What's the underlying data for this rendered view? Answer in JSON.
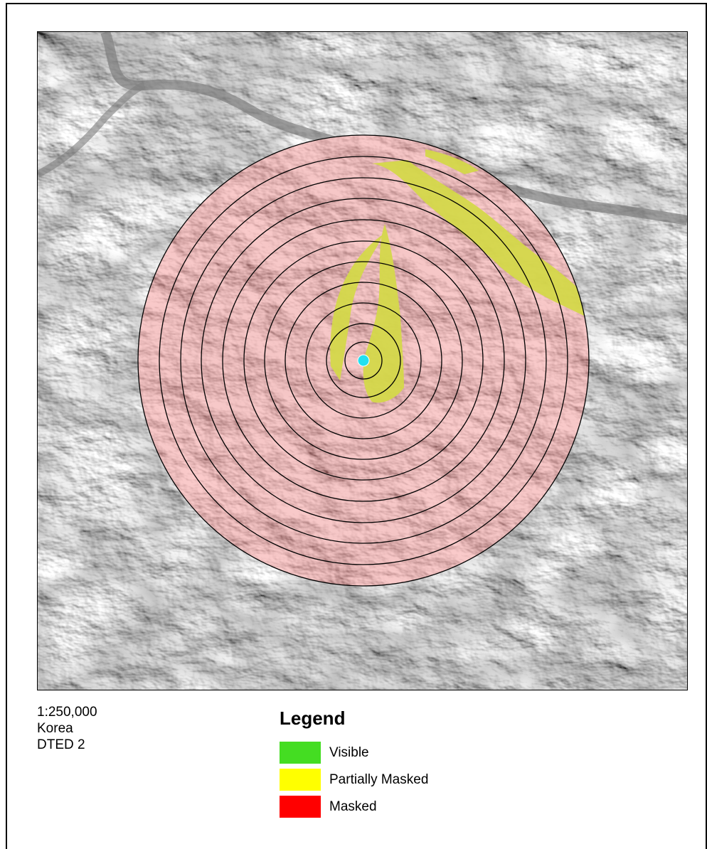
{
  "map": {
    "basemap": "grayscale shaded relief terrain",
    "overlay": "viewshed analysis",
    "range_ring_count": 11,
    "observer_icon": "observer-point-icon",
    "colors": {
      "masked_overlay": "#f07070",
      "partially_masked_overlay": "#d4d84a",
      "ring_stroke": "#000000",
      "observer": "#22e0f0"
    }
  },
  "info": {
    "scale": "1:250,000",
    "region": "Korea",
    "dataset": "DTED 2"
  },
  "legend": {
    "title": "Legend",
    "items": [
      {
        "label": "Visible",
        "color": "#44dd22"
      },
      {
        "label": "Partially Masked",
        "color": "#ffff00"
      },
      {
        "label": "Masked",
        "color": "#ff0000"
      }
    ]
  }
}
